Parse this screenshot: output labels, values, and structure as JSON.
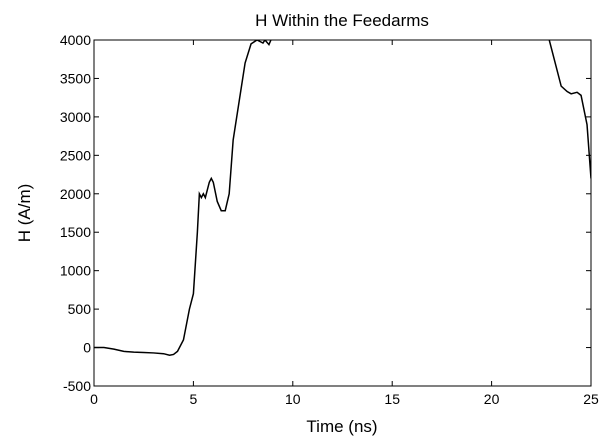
{
  "chart_data": {
    "type": "line",
    "title": "H Within the Feedarms",
    "x_label": "Time (ns)",
    "y_label": "H (A/m)",
    "x": [
      0,
      0.5,
      1,
      1.5,
      2,
      2.5,
      3,
      3.5,
      3.8,
      4,
      4.2,
      4.5,
      4.8,
      5,
      5.2,
      5.3,
      5.4,
      5.5,
      5.6,
      5.8,
      5.9,
      6,
      6.2,
      6.4,
      6.6,
      6.8,
      7,
      7.3,
      7.6,
      7.9,
      8.2,
      8.5,
      8.6,
      8.8,
      8.9,
      15,
      22.9,
      23.2,
      23.5,
      23.8,
      24,
      24.3,
      24.5,
      24.8,
      25
    ],
    "series": [
      {
        "name": "H",
        "color": "#000000",
        "values": [
          0,
          0,
          -20,
          -50,
          -60,
          -65,
          -70,
          -80,
          -100,
          -90,
          -50,
          100,
          500,
          700,
          1500,
          2000,
          1950,
          2000,
          1950,
          2150,
          2200,
          2150,
          1900,
          1780,
          1780,
          2000,
          2700,
          3200,
          3700,
          3950,
          4000,
          3960,
          4000,
          3940,
          4000,
          null,
          4000,
          3700,
          3400,
          3330,
          3300,
          3320,
          3280,
          2900,
          2200
        ]
      }
    ],
    "xlim": [
      0,
      25
    ],
    "xticks": [
      0,
      5,
      10,
      15,
      20,
      25
    ],
    "ylim": [
      -500,
      4000
    ],
    "yticks": [
      -500,
      0,
      500,
      1000,
      1500,
      2000,
      2500,
      3000,
      3500,
      4000
    ],
    "grid": false
  }
}
